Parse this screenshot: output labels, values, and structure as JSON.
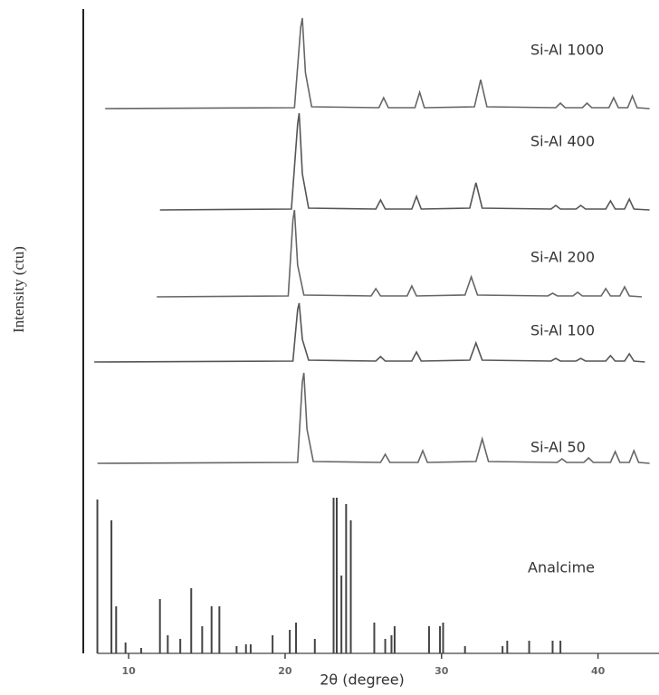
{
  "chart_data": {
    "type": "line",
    "xlabel": "2θ (degree)",
    "ylabel": "Intensity (ctu)",
    "xlim": [
      7.1,
      43.9
    ],
    "xticks": [
      10,
      20,
      30,
      40
    ],
    "series": [
      {
        "name": "Si-Al 1000",
        "type": "line",
        "color": "#666666",
        "x": [
          8.5,
          20.6,
          21.0,
          21.1,
          21.3,
          21.7,
          26.0,
          26.3,
          26.6,
          28.3,
          28.6,
          28.9,
          32.1,
          32.5,
          32.9,
          37.3,
          37.6,
          37.9,
          39.0,
          39.3,
          39.6,
          40.7,
          41.0,
          41.3,
          41.9,
          42.2,
          42.5,
          43.3
        ],
        "values": [
          0,
          1,
          90,
          100,
          40,
          2,
          1,
          12,
          1,
          1,
          18,
          1,
          2,
          32,
          2,
          1,
          6,
          1,
          1,
          6,
          1,
          1,
          12,
          1,
          1,
          14,
          1,
          0
        ]
      },
      {
        "name": "Si-Al 400",
        "type": "line",
        "color": "#555555",
        "x": [
          12.0,
          20.4,
          20.8,
          20.9,
          21.1,
          21.5,
          25.8,
          26.1,
          26.4,
          28.1,
          28.4,
          28.7,
          31.8,
          32.2,
          32.6,
          37.0,
          37.3,
          37.6,
          38.6,
          38.9,
          39.2,
          40.5,
          40.8,
          41.1,
          41.7,
          42.0,
          42.3,
          43.3
        ],
        "values": [
          0,
          1,
          95,
          107,
          40,
          2,
          1,
          11,
          1,
          1,
          15,
          1,
          2,
          30,
          2,
          1,
          5,
          1,
          1,
          5,
          1,
          1,
          10,
          1,
          1,
          12,
          1,
          0
        ]
      },
      {
        "name": "Si-Al 200",
        "type": "line",
        "color": "#666666",
        "x": [
          11.8,
          20.2,
          20.5,
          20.6,
          20.8,
          21.2,
          25.5,
          25.8,
          26.1,
          27.8,
          28.1,
          28.4,
          31.5,
          31.9,
          32.3,
          36.8,
          37.1,
          37.4,
          38.4,
          38.7,
          39.0,
          40.2,
          40.5,
          40.8,
          41.4,
          41.7,
          42.0,
          42.8
        ],
        "values": [
          0,
          1,
          85,
          96,
          35,
          2,
          1,
          9,
          1,
          1,
          12,
          1,
          2,
          22,
          2,
          1,
          4,
          1,
          1,
          5,
          1,
          1,
          9,
          1,
          1,
          11,
          1,
          0
        ]
      },
      {
        "name": "Si-Al 100",
        "type": "line",
        "color": "#555555",
        "x": [
          7.8,
          20.5,
          20.8,
          20.9,
          21.1,
          21.5,
          25.8,
          26.1,
          26.4,
          28.1,
          28.4,
          28.7,
          31.8,
          32.2,
          32.6,
          37.0,
          37.3,
          37.6,
          38.6,
          38.9,
          39.2,
          40.5,
          40.8,
          41.1,
          41.7,
          42.0,
          42.3,
          43.0
        ],
        "values": [
          0,
          1,
          58,
          65,
          25,
          2,
          1,
          6,
          1,
          1,
          11,
          1,
          2,
          21,
          2,
          1,
          4,
          1,
          1,
          4,
          1,
          1,
          7,
          1,
          1,
          9,
          1,
          0
        ]
      },
      {
        "name": "Si-Al 50",
        "type": "line",
        "color": "#666666",
        "x": [
          8.0,
          20.8,
          21.1,
          21.2,
          21.4,
          21.8,
          26.1,
          26.4,
          26.7,
          28.5,
          28.8,
          29.1,
          32.2,
          32.6,
          33.0,
          37.4,
          37.7,
          38.0,
          39.1,
          39.4,
          39.7,
          40.8,
          41.1,
          41.4,
          42.0,
          42.3,
          42.6,
          43.3
        ],
        "values": [
          0,
          1,
          90,
          100,
          38,
          2,
          1,
          10,
          1,
          1,
          14,
          1,
          2,
          27,
          2,
          1,
          5,
          1,
          1,
          6,
          1,
          1,
          13,
          1,
          1,
          14,
          1,
          0
        ]
      },
      {
        "name": "Analcime",
        "type": "stick",
        "color": "#444444",
        "x": [
          8.0,
          8.9,
          9.2,
          9.8,
          10.8,
          12.0,
          12.5,
          13.3,
          14.0,
          14.7,
          15.3,
          15.8,
          16.9,
          17.5,
          17.8,
          19.2,
          20.3,
          20.7,
          21.9,
          23.1,
          23.3,
          23.6,
          23.9,
          24.2,
          25.7,
          26.4,
          26.8,
          27.0,
          29.2,
          29.9,
          30.1,
          31.5,
          33.9,
          34.2,
          35.6,
          37.1,
          37.6
        ],
        "values": [
          170,
          147,
          52,
          12,
          6,
          60,
          20,
          16,
          72,
          30,
          52,
          52,
          8,
          10,
          10,
          20,
          26,
          34,
          16,
          172,
          172,
          86,
          165,
          147,
          34,
          16,
          20,
          30,
          30,
          30,
          34,
          8,
          8,
          14,
          14,
          14,
          14
        ]
      }
    ]
  }
}
